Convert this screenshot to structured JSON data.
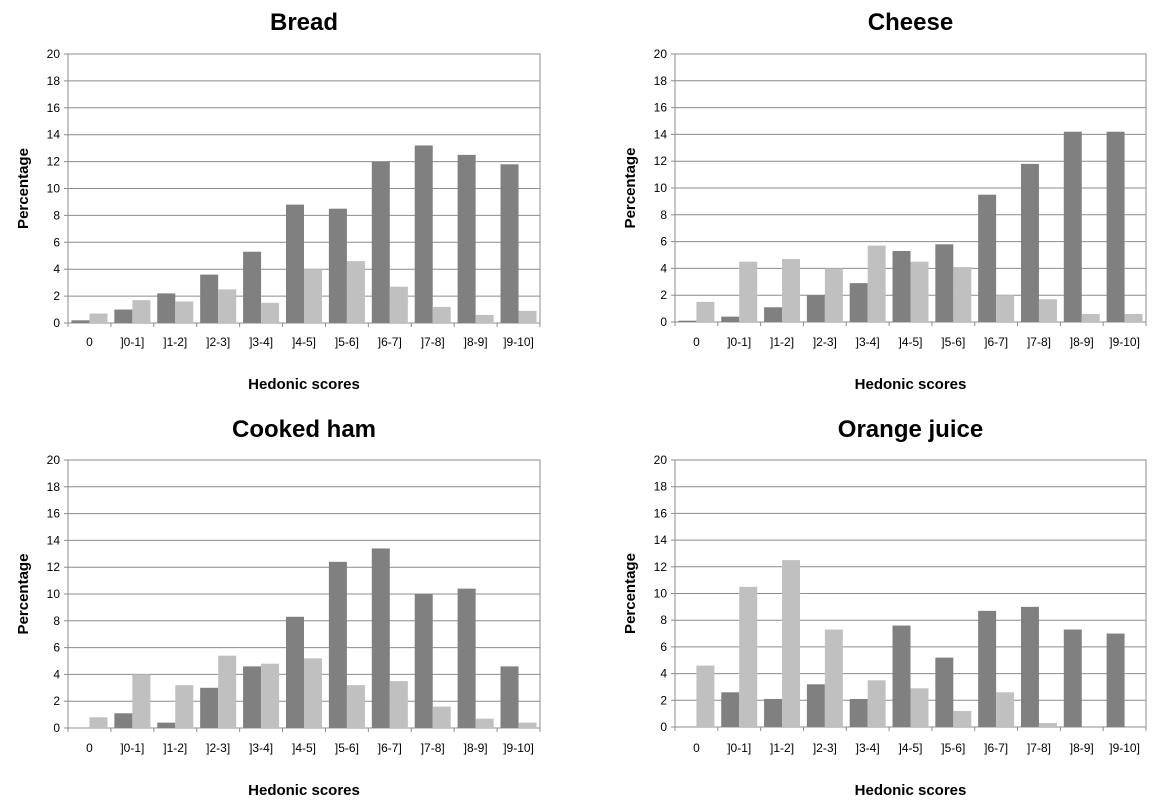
{
  "chart_data": [
    {
      "type": "bar",
      "title": "Bread",
      "xlabel": "Hedonic scores",
      "ylabel": "Percentage",
      "ylim": [
        0,
        20
      ],
      "yticks": [
        "0",
        "2",
        "4",
        "6",
        "8",
        "10",
        "12",
        "14",
        "16",
        "18",
        "20"
      ],
      "categories": [
        "0",
        "]0-1]",
        "]1-2]",
        "]2-3]",
        "]3-4]",
        "]4-5]",
        "]5-6]",
        "]6-7]",
        "]7-8]",
        "]8-9]",
        "]9-10]"
      ],
      "series": [
        {
          "color": "#808080",
          "values": [
            0.2,
            1.0,
            2.2,
            3.6,
            5.3,
            8.8,
            8.5,
            12.0,
            13.2,
            12.5,
            11.8
          ]
        },
        {
          "color": "#c0c0c0",
          "values": [
            0.7,
            1.7,
            1.6,
            2.5,
            1.5,
            4.0,
            4.6,
            2.7,
            1.2,
            0.6,
            0.9
          ]
        }
      ],
      "grid": true
    },
    {
      "type": "bar",
      "title": "Cheese",
      "xlabel": "Hedonic scores",
      "ylabel": "Percentage",
      "ylim": [
        0,
        20
      ],
      "yticks": [
        "0",
        "2",
        "4",
        "6",
        "8",
        "10",
        "12",
        "14",
        "16",
        "18",
        "20"
      ],
      "categories": [
        "0",
        "]0-1]",
        "]1-2]",
        "]2-3]",
        "]3-4]",
        "]4-5]",
        "]5-6]",
        "]6-7]",
        "]7-8]",
        "]8-9]",
        "]9-10]"
      ],
      "series": [
        {
          "color": "#808080",
          "values": [
            0.1,
            0.4,
            1.1,
            2.0,
            2.9,
            5.3,
            5.8,
            9.5,
            11.8,
            14.2,
            14.2
          ]
        },
        {
          "color": "#c0c0c0",
          "values": [
            1.5,
            4.5,
            4.7,
            4.0,
            5.7,
            4.5,
            4.1,
            2.0,
            1.7,
            0.6,
            0.6
          ]
        }
      ],
      "grid": true
    },
    {
      "type": "bar",
      "title": "Cooked ham",
      "xlabel": "Hedonic scores",
      "ylabel": "Percentage",
      "ylim": [
        0,
        20
      ],
      "yticks": [
        "0",
        "2",
        "4",
        "6",
        "8",
        "10",
        "12",
        "14",
        "16",
        "18",
        "20"
      ],
      "categories": [
        "0",
        "]0-1]",
        "]1-2]",
        "]2-3]",
        "]3-4]",
        "]4-5]",
        "]5-6]",
        "]6-7]",
        "]7-8]",
        "]8-9]",
        "]9-10]"
      ],
      "series": [
        {
          "color": "#808080",
          "values": [
            0.0,
            1.1,
            0.4,
            3.0,
            4.6,
            8.3,
            12.4,
            13.4,
            10.0,
            10.4,
            4.6
          ]
        },
        {
          "color": "#c0c0c0",
          "values": [
            0.8,
            4.0,
            3.2,
            5.4,
            4.8,
            5.2,
            3.2,
            3.5,
            1.6,
            0.7,
            0.4
          ]
        }
      ],
      "grid": true
    },
    {
      "type": "bar",
      "title": "Orange juice",
      "xlabel": "Hedonic scores",
      "ylabel": "Percentage",
      "ylim": [
        0,
        20
      ],
      "yticks": [
        "0",
        "2",
        "4",
        "6",
        "8",
        "10",
        "12",
        "14",
        "16",
        "18",
        "20"
      ],
      "categories": [
        "0",
        "]0-1]",
        "]1-2]",
        "]2-3]",
        "]3-4]",
        "]4-5]",
        "]5-6]",
        "]6-7]",
        "]7-8]",
        "]8-9]",
        "]9-10]"
      ],
      "series": [
        {
          "color": "#808080",
          "values": [
            0.0,
            2.6,
            2.1,
            3.2,
            2.1,
            7.6,
            5.2,
            8.7,
            9.0,
            7.3,
            7.0
          ]
        },
        {
          "color": "#c0c0c0",
          "values": [
            4.6,
            10.5,
            12.5,
            7.3,
            3.5,
            2.9,
            1.2,
            2.6,
            0.3,
            0.0,
            0.0
          ]
        }
      ],
      "grid": true
    }
  ]
}
